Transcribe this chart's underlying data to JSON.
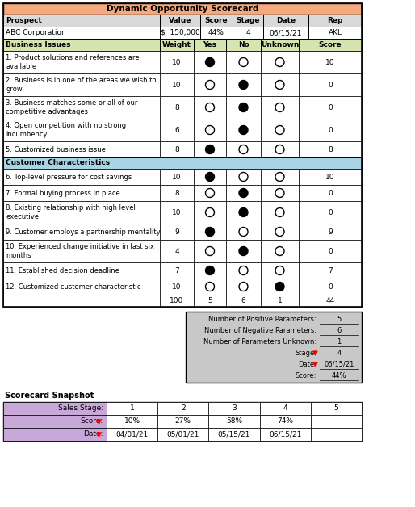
{
  "title": "Dynamic Opportunity Scorecard",
  "title_bg": "#F4A97F",
  "header_bg": "#D9D9D9",
  "section_bg_green": "#D6E4B0",
  "section_bg_blue": "#A8D4E6",
  "prospect_row": [
    "ABC Corporation",
    "$  150,000",
    "44%",
    "4",
    "06/15/21",
    "AKL"
  ],
  "top_headers": [
    "Prospect",
    "Value",
    "Score",
    "Stage",
    "Date",
    "Rep"
  ],
  "bi_header": [
    "Business Issues",
    "Weight",
    "Yes",
    "No",
    "Unknown",
    "Score"
  ],
  "rows": [
    {
      "label": "1. Product solutions and references are\navailable",
      "weight": 10,
      "yes": true,
      "no": false,
      "unknown": false,
      "score": 10
    },
    {
      "label": "2. Business is in one of the areas we wish to\ngrow",
      "weight": 10,
      "yes": false,
      "no": true,
      "unknown": false,
      "score": 0
    },
    {
      "label": "3. Business matches some or all of our\ncompetitive advantages",
      "weight": 8,
      "yes": false,
      "no": true,
      "unknown": false,
      "score": 0
    },
    {
      "label": "4. Open competition with no strong\nincumbency",
      "weight": 6,
      "yes": false,
      "no": true,
      "unknown": false,
      "score": 0
    },
    {
      "label": "5. Customized business issue",
      "weight": 8,
      "yes": true,
      "no": false,
      "unknown": false,
      "score": 8
    }
  ],
  "cc_header": "Customer Characteristics",
  "cc_rows": [
    {
      "label": "6. Top-level pressure for cost savings",
      "weight": 10,
      "yes": true,
      "no": false,
      "unknown": false,
      "score": 10
    },
    {
      "label": "7. Formal buying process in place",
      "weight": 8,
      "yes": false,
      "no": true,
      "unknown": false,
      "score": 0
    },
    {
      "label": "8. Existing relationship with high level\nexecutive",
      "weight": 10,
      "yes": false,
      "no": true,
      "unknown": false,
      "score": 0
    },
    {
      "label": "9. Customer employs a partnership mentality",
      "weight": 9,
      "yes": true,
      "no": false,
      "unknown": false,
      "score": 9
    },
    {
      "label": "10. Experienced change initiative in last six\nmonths",
      "weight": 4,
      "yes": false,
      "no": true,
      "unknown": false,
      "score": 0
    },
    {
      "label": "11. Established decision deadline",
      "weight": 7,
      "yes": true,
      "no": false,
      "unknown": false,
      "score": 7
    },
    {
      "label": "12. Customized customer characteristic",
      "weight": 10,
      "yes": false,
      "no": false,
      "unknown": true,
      "score": 0
    }
  ],
  "totals": {
    "weight": 100,
    "yes": 5,
    "no": 6,
    "unknown": 1,
    "score": 44
  },
  "summary_bg": "#C8C8C8",
  "summary": {
    "positive": 5,
    "negative": 6,
    "unknown": 1,
    "stage": "4",
    "date": "06/15/21",
    "score": "44%"
  },
  "snapshot_title": "Scorecard Snapshot",
  "snapshot_bg": "#C8A8D8",
  "snapshot_stages": [
    "1",
    "2",
    "3",
    "4",
    "5"
  ],
  "snapshot_scores": [
    "10%",
    "27%",
    "58%",
    "74%",
    ""
  ],
  "snapshot_dates": [
    "04/01/21",
    "05/01/21",
    "05/15/21",
    "06/15/21",
    ""
  ]
}
